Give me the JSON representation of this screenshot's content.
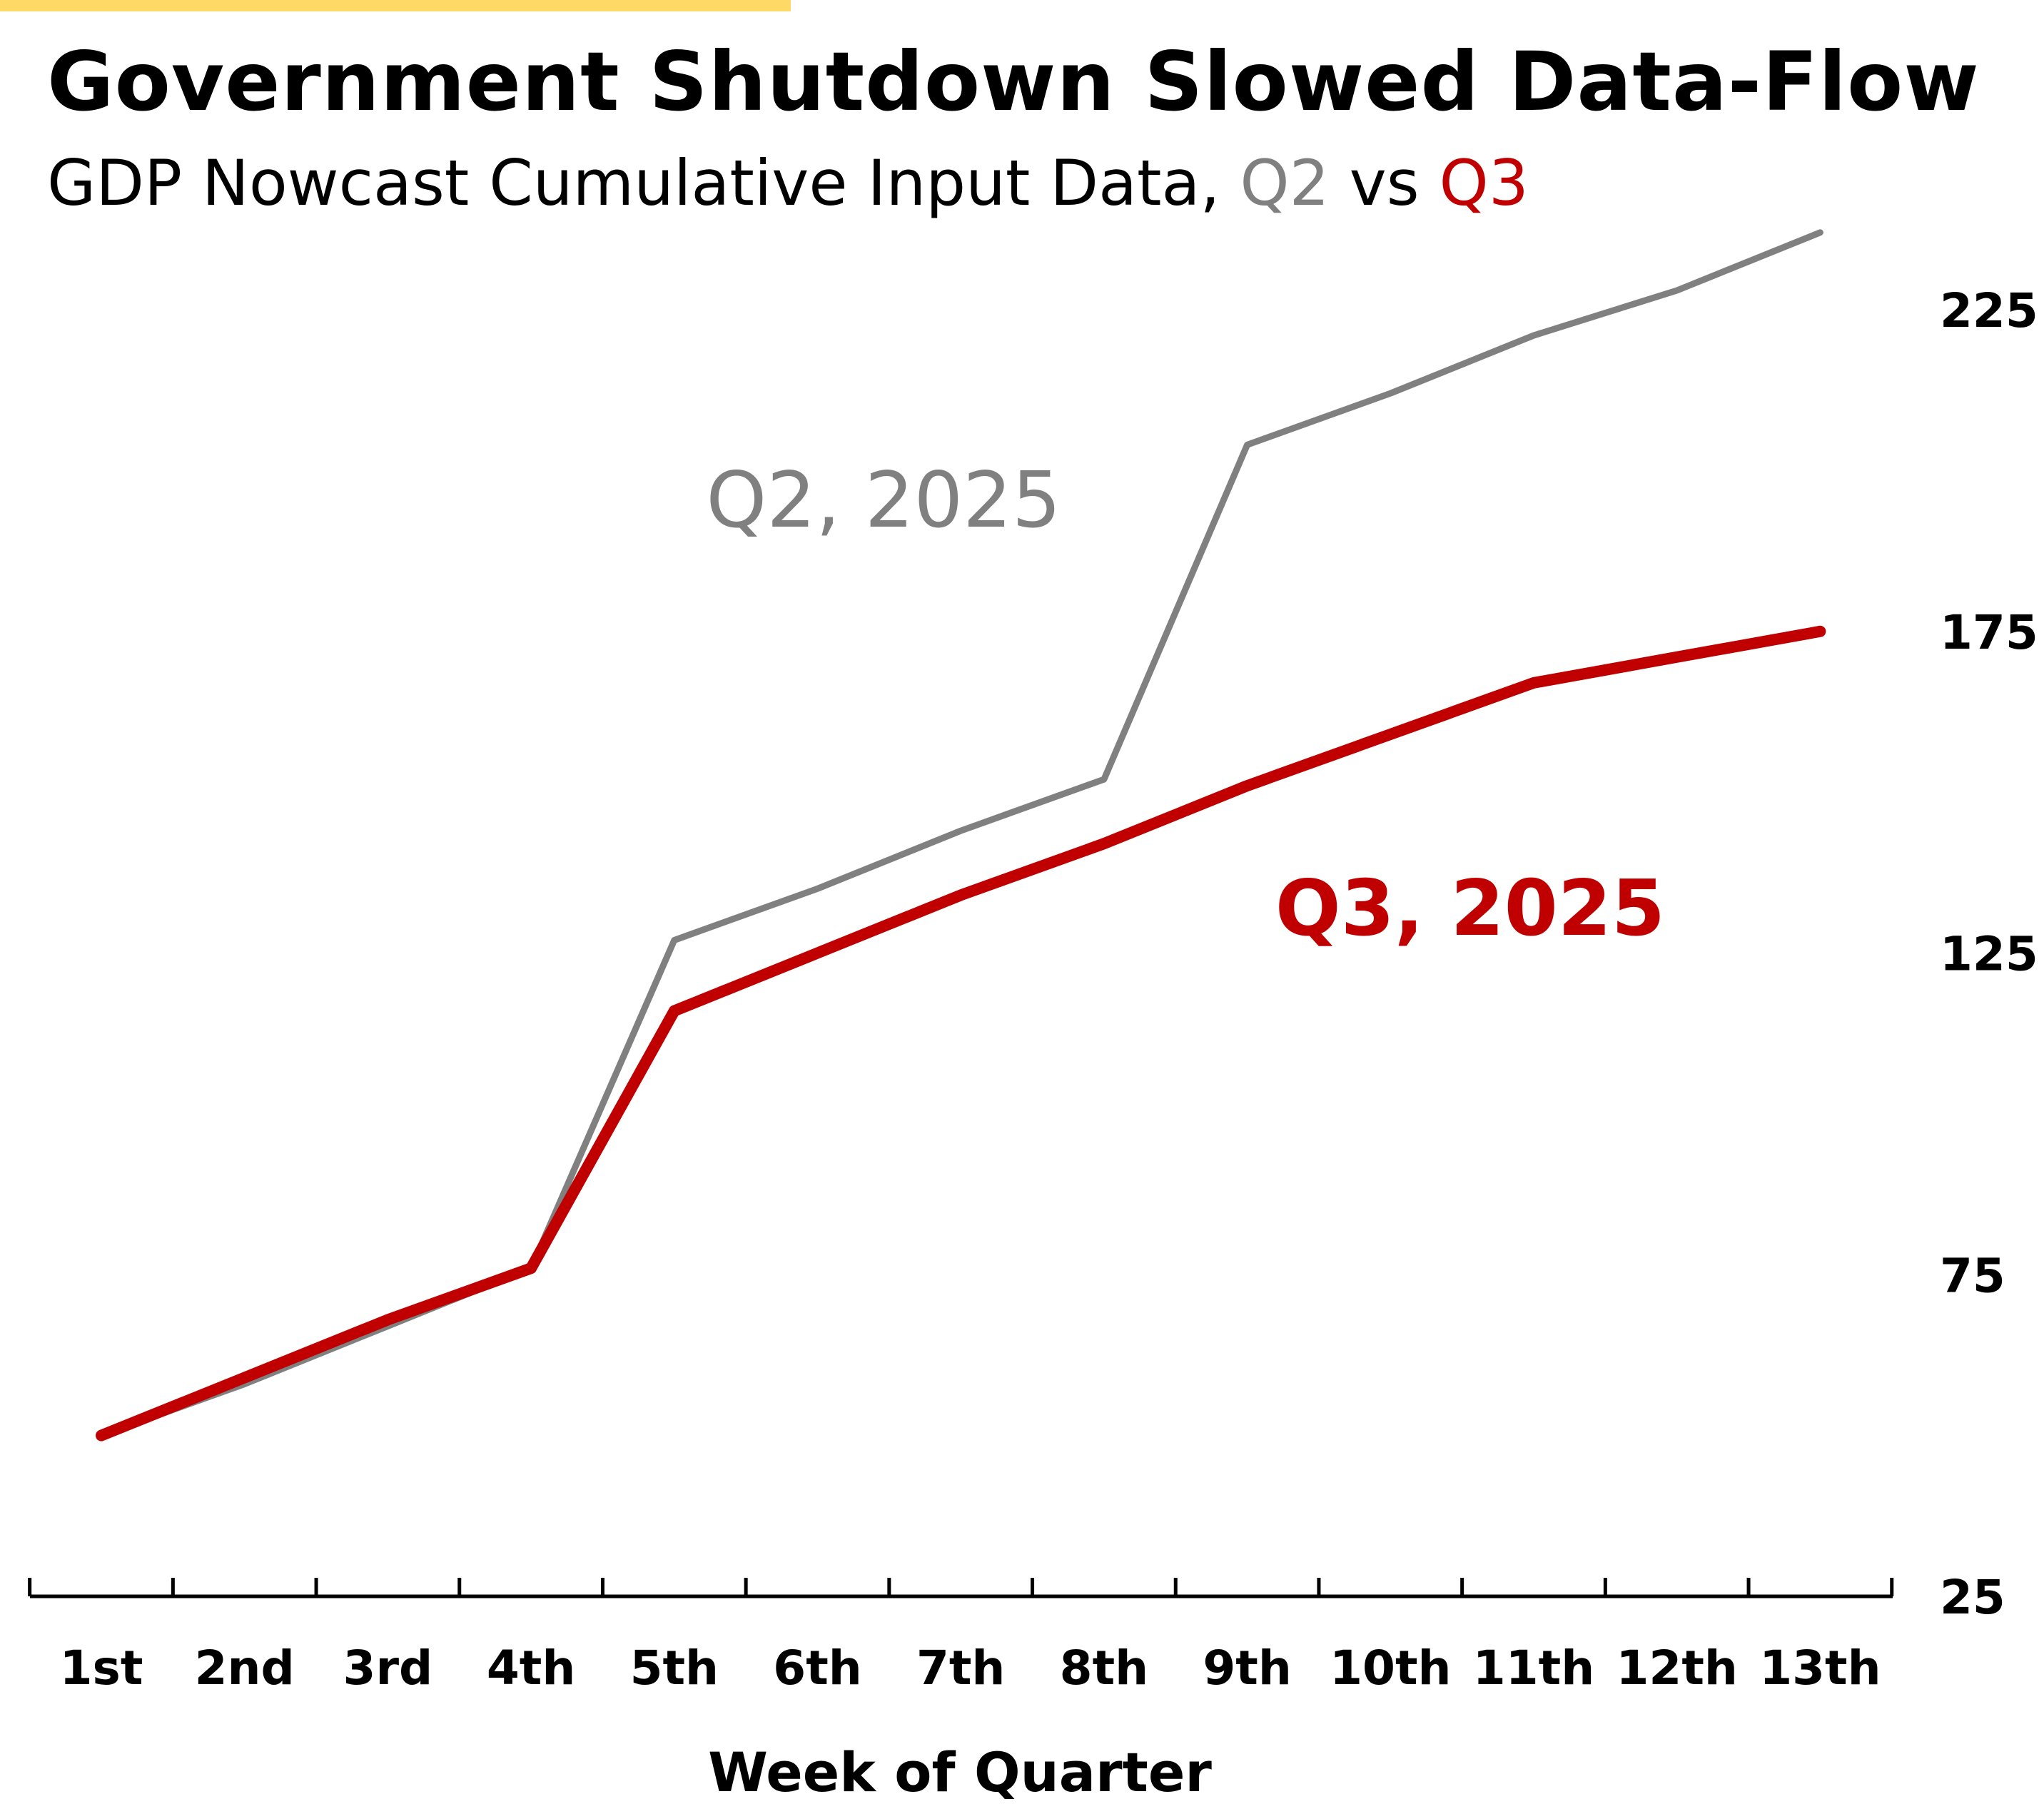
{
  "header": {
    "title": "Government Shutdown Slowed Data-Flow",
    "subtitle_prefix": "GDP Nowcast Cumulative Input Data, ",
    "subtitle_q2": "Q2",
    "subtitle_vs": " vs ",
    "subtitle_q3": "Q3"
  },
  "colors": {
    "accent": "#FFD966",
    "q2": "#808080",
    "q3": "#C00000",
    "axis": "#000000"
  },
  "chart_data": {
    "type": "line",
    "title": "Government Shutdown Slowed Data-Flow",
    "subtitle": "GDP Nowcast Cumulative Input Data, Q2 vs Q3",
    "xlabel": "Week of Quarter",
    "ylabel": "",
    "categories": [
      "1st",
      "2nd",
      "3rd",
      "4th",
      "5th",
      "6th",
      "7th",
      "8th",
      "9th",
      "10th",
      "11th",
      "12th",
      "13th"
    ],
    "ylim": [
      25,
      225
    ],
    "yticks": [
      25,
      75,
      125,
      175,
      225
    ],
    "y_axis_side": "right",
    "grid": false,
    "series": [
      {
        "name": "Q2, 2025",
        "color": "#808080",
        "values": [
          50,
          58,
          67,
          76,
          127,
          135,
          144,
          152,
          204,
          212,
          221,
          228,
          237
        ]
      },
      {
        "name": "Q3, 2025",
        "color": "#C00000",
        "values": [
          50,
          59,
          68,
          76,
          116,
          125,
          134,
          142,
          151,
          159,
          167,
          171,
          175
        ]
      }
    ],
    "annotations": [
      {
        "text": "Q2, 2025",
        "series": "Q2, 2025"
      },
      {
        "text": "Q3, 2025",
        "series": "Q3, 2025"
      }
    ]
  }
}
